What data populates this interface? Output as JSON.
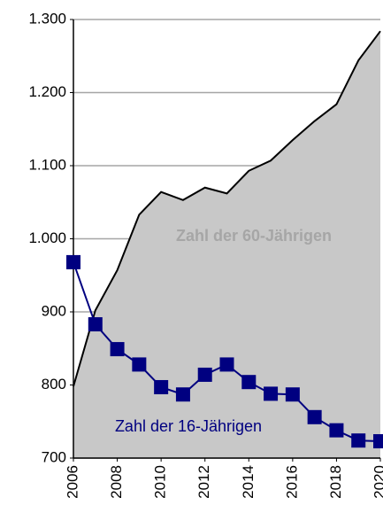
{
  "chart_data": {
    "type": "line",
    "x": [
      2006,
      2007,
      2008,
      2009,
      2010,
      2011,
      2012,
      2013,
      2014,
      2015,
      2016,
      2017,
      2018,
      2019,
      2020
    ],
    "xlim": [
      2006,
      2020
    ],
    "xticks": [
      2006,
      2008,
      2010,
      2012,
      2014,
      2016,
      2018,
      2020
    ],
    "ylim": [
      700,
      1300
    ],
    "yticks": [
      700,
      800,
      900,
      {
        "value": 1000,
        "label": "1.000"
      },
      {
        "value": 1100,
        "label": "1.100"
      },
      {
        "value": 1200,
        "label": "1.200"
      },
      {
        "value": 1300,
        "label": "1.300"
      }
    ],
    "grid": true,
    "series": [
      {
        "name": "Zahl der 60-Jährigen",
        "type": "area",
        "color": "#c8c8c8",
        "values": [
          798,
          902,
          957,
          1033,
          1064,
          1053,
          1070,
          1062,
          1093,
          1107,
          1135,
          1161,
          1184,
          1244,
          1284
        ]
      },
      {
        "name": "Zahl der 16-Jährigen",
        "type": "line",
        "color": "#000080",
        "values": [
          968,
          883,
          849,
          828,
          797,
          787,
          814,
          828,
          804,
          788,
          787,
          756,
          738,
          724,
          723
        ]
      }
    ]
  }
}
